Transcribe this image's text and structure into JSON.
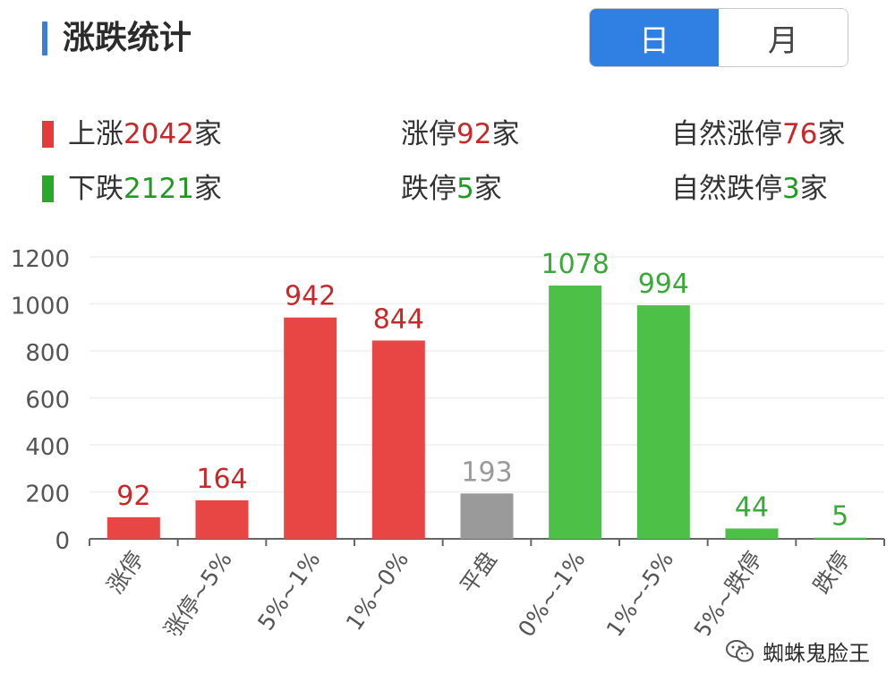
{
  "header": {
    "title": "涨跌统计",
    "toggle": {
      "day_label": "日",
      "month_label": "月",
      "selected": "日"
    }
  },
  "summary": {
    "row1": [
      {
        "prefix": "上涨",
        "value": "2042",
        "suffix": "家",
        "color": "#c8282a",
        "marker_color": "#e53a3a"
      },
      {
        "prefix": "涨停",
        "value": "92",
        "suffix": "家",
        "color": "#c8282a"
      },
      {
        "prefix": "自然涨停",
        "value": "76",
        "suffix": "家",
        "color": "#c8282a"
      }
    ],
    "row2": [
      {
        "prefix": "下跌",
        "value": "2121",
        "suffix": "家",
        "color": "#1f9a22",
        "marker_color": "#2aa82a"
      },
      {
        "prefix": "跌停",
        "value": "5",
        "suffix": "家",
        "color": "#1f9a22"
      },
      {
        "prefix": "自然跌停",
        "value": "3",
        "suffix": "家",
        "color": "#1f9a22"
      }
    ]
  },
  "chart_data": {
    "type": "bar",
    "categories": [
      "涨停",
      "涨停~5%",
      "5%~1%",
      "1%~0%",
      "平盘",
      "0%~-1%",
      "-1%~-5%",
      "-5%~跌停",
      "跌停"
    ],
    "values": [
      92,
      164,
      942,
      844,
      193,
      1078,
      994,
      44,
      5
    ],
    "bar_colors": [
      "#e84545",
      "#e84545",
      "#e84545",
      "#e84545",
      "#9a9a9a",
      "#4cc047",
      "#4cc047",
      "#4cc047",
      "#4cc047"
    ],
    "label_colors": [
      "#c8282a",
      "#c8282a",
      "#c8282a",
      "#c8282a",
      "#9a9a9a",
      "#3aa93a",
      "#3aa93a",
      "#3aa93a",
      "#3aa93a"
    ],
    "yticks": [
      "0",
      "200",
      "400",
      "600",
      "800",
      "1000",
      "1200"
    ],
    "ylim": [
      0,
      1200
    ],
    "grid": true
  },
  "watermark": {
    "text": "蜘蛛鬼脸王",
    "icon": "wechat-icon"
  }
}
